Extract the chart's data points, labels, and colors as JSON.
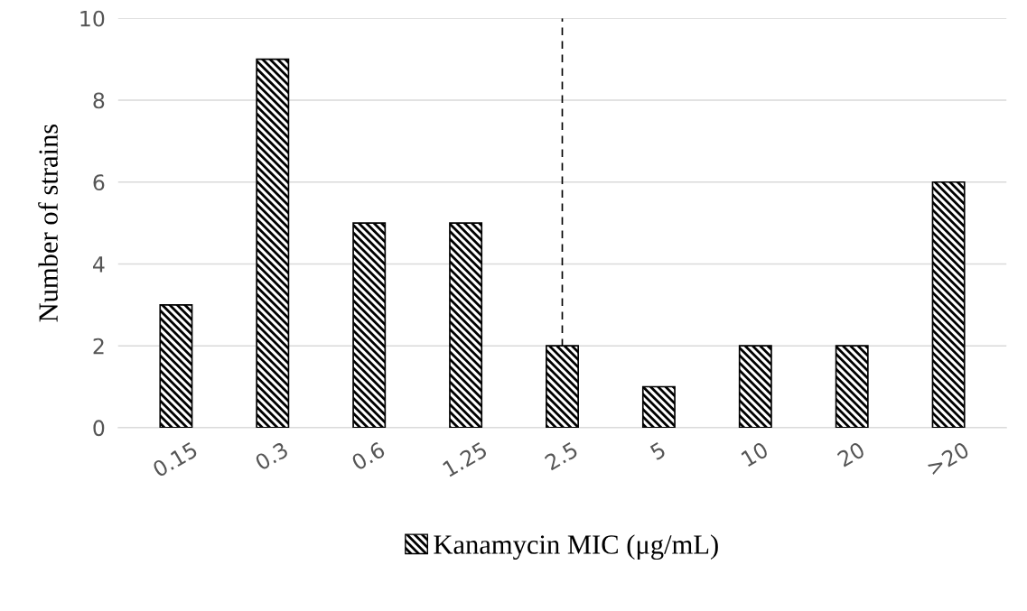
{
  "chart_data": {
    "type": "bar",
    "ylabel": "Number of strains",
    "categories": [
      "0.15",
      "0.3",
      "0.6",
      "1.25",
      "2.5",
      "5",
      "10",
      "20",
      ">20"
    ],
    "series": [
      {
        "name": "Kanamycin MIC (μg/mL)",
        "color": "#000000",
        "values": [
          3,
          9,
          5,
          5,
          2,
          1,
          2,
          2,
          6
        ]
      }
    ],
    "ylim": [
      0,
      10
    ],
    "yticks": [
      0,
      2,
      4,
      6,
      8,
      10
    ],
    "grid": "y",
    "legend": "bottom",
    "ref_lines": [
      {
        "axis": "x",
        "value": "2.5",
        "color": "#000000",
        "line_style": "dashed"
      }
    ]
  }
}
